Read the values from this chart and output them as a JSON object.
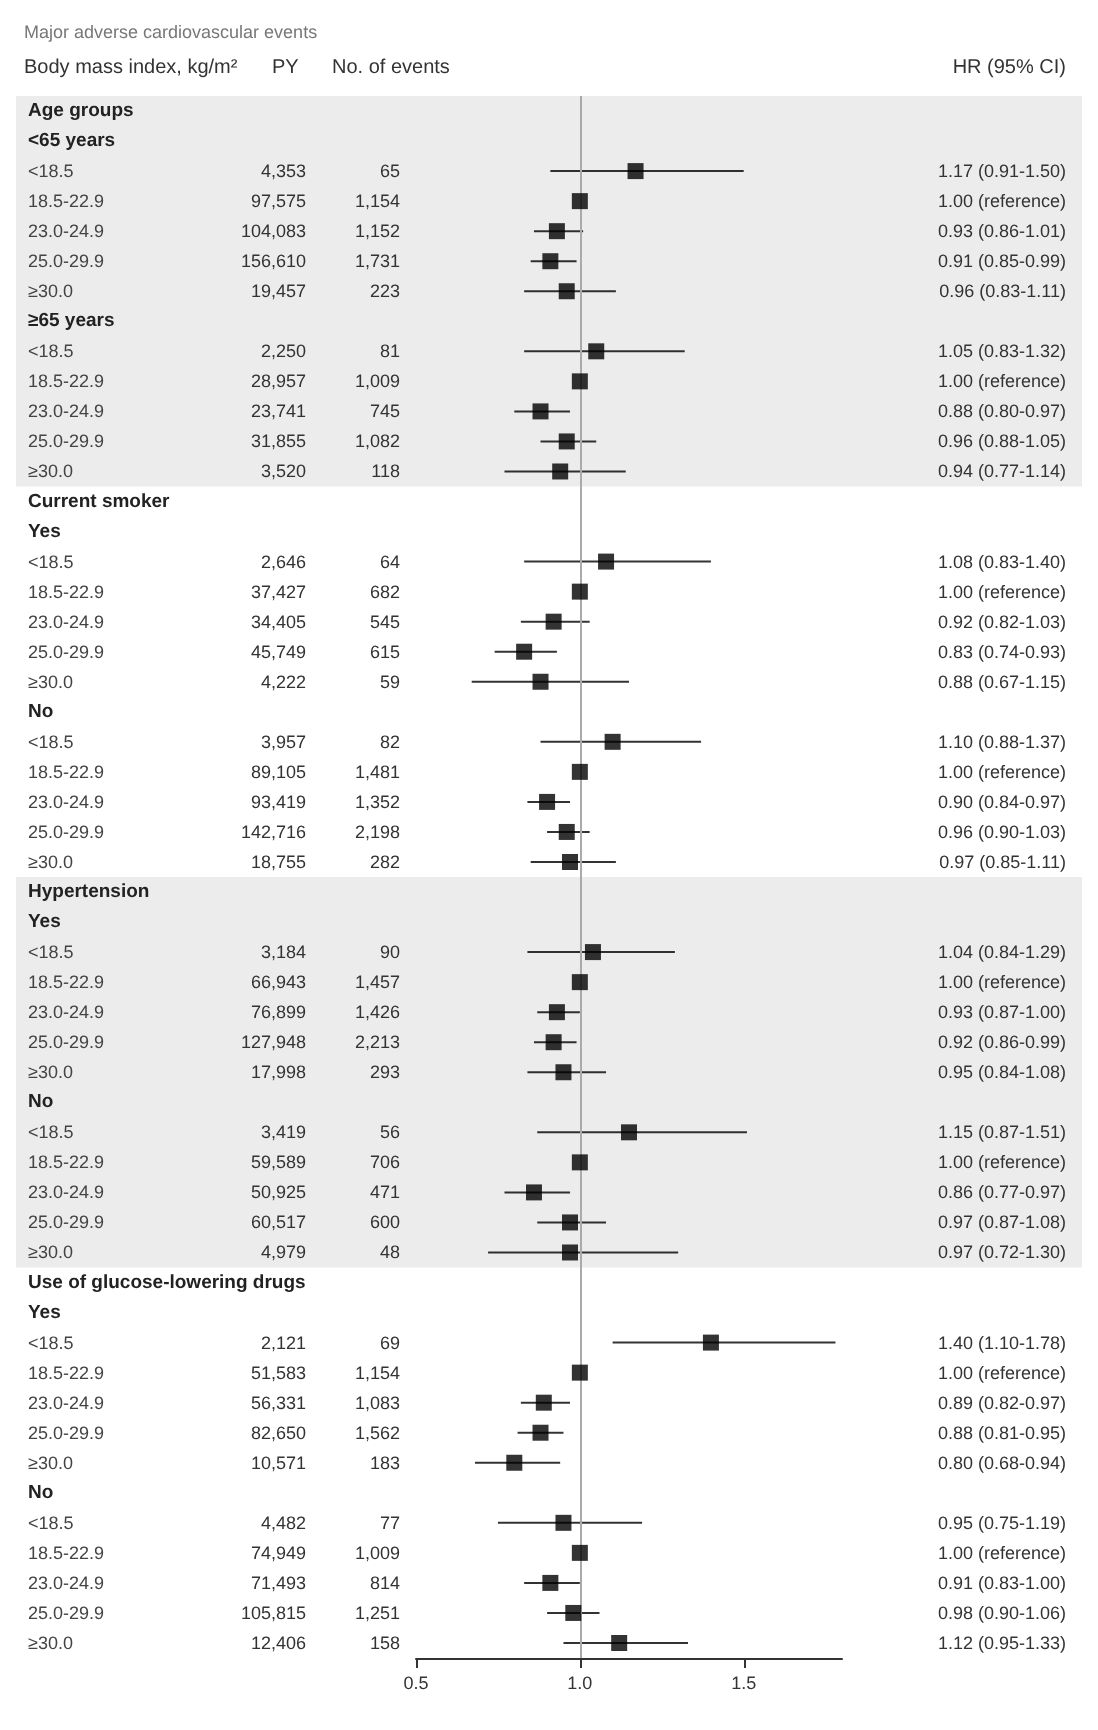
{
  "chart_data": {
    "type": "scatter",
    "orientation": "horizontal",
    "title": "Major adverse cardiovascular events",
    "categories": [
      "Age groups",
      "<65 years",
      "<18.5",
      "18.5-22.9",
      "23.0-24.9",
      "25.0-29.9",
      "≥30.0",
      "≥65 years",
      "<18.5",
      "18.5-22.9",
      "23.0-24.9",
      "25.0-29.9",
      "≥30.0",
      "Current smoker",
      "Yes",
      "<18.5",
      "18.5-22.9",
      "23.0-24.9",
      "25.0-29.9",
      "≥30.0",
      "No",
      "<18.5",
      "18.5-22.9",
      "23.0-24.9",
      "25.0-29.9",
      "≥30.0",
      "Hypertension",
      "Yes",
      "<18.5",
      "18.5-22.9",
      "23.0-24.9",
      "25.0-29.9",
      "≥30.0",
      "No",
      "<18.5",
      "18.5-22.9",
      "23.0-24.9",
      "25.0-29.9",
      "≥30.0",
      "Use of glucose-lowering drugs",
      "Yes",
      "<18.5",
      "18.5-22.9",
      "23.0-24.9",
      "25.0-29.9",
      "≥30.0",
      "No",
      "<18.5",
      "18.5-22.9",
      "23.0-24.9",
      "25.0-29.9",
      "≥30.0"
    ],
    "series": [
      {
        "color": "#000000",
        "values": [
          null,
          null,
          1.17,
          1.0,
          0.93,
          0.91,
          0.96,
          null,
          1.05,
          1.0,
          0.88,
          0.96,
          0.94,
          null,
          null,
          1.08,
          1.0,
          0.92,
          0.83,
          0.88,
          null,
          1.1,
          1.0,
          0.9,
          0.96,
          0.97,
          null,
          null,
          1.04,
          1.0,
          0.93,
          0.92,
          0.95,
          null,
          1.15,
          1.0,
          0.86,
          0.97,
          0.97,
          null,
          null,
          1.4,
          1.0,
          0.89,
          0.88,
          0.8,
          null,
          0.95,
          1.0,
          0.91,
          0.98,
          1.12
        ],
        "errors": [
          null,
          null,
          [
            0.91,
            1.5
          ],
          null,
          [
            0.86,
            1.01
          ],
          [
            0.85,
            0.99
          ],
          [
            0.83,
            1.11
          ],
          null,
          [
            0.83,
            1.32
          ],
          null,
          [
            0.8,
            0.97
          ],
          [
            0.88,
            1.05
          ],
          [
            0.77,
            1.14
          ],
          null,
          null,
          [
            0.83,
            1.4
          ],
          null,
          [
            0.82,
            1.03
          ],
          [
            0.74,
            0.93
          ],
          [
            0.67,
            1.15
          ],
          null,
          [
            0.88,
            1.37
          ],
          null,
          [
            0.84,
            0.97
          ],
          [
            0.9,
            1.03
          ],
          [
            0.85,
            1.11
          ],
          null,
          null,
          [
            0.84,
            1.29
          ],
          null,
          [
            0.87,
            1.0
          ],
          [
            0.86,
            0.99
          ],
          [
            0.84,
            1.08
          ],
          null,
          [
            0.87,
            1.51
          ],
          null,
          [
            0.77,
            0.97
          ],
          [
            0.87,
            1.08
          ],
          [
            0.72,
            1.3
          ],
          null,
          null,
          [
            1.1,
            1.78
          ],
          null,
          [
            0.82,
            0.97
          ],
          [
            0.81,
            0.95
          ],
          [
            0.68,
            0.94
          ],
          null,
          [
            0.75,
            1.19
          ],
          null,
          [
            0.83,
            1.0
          ],
          [
            0.9,
            1.06
          ],
          [
            0.95,
            1.33
          ]
        ],
        "value_labels": [
          null,
          null,
          "1.17 (0.91-1.50)",
          "1.00 (reference)",
          "0.93 (0.86-1.01)",
          "0.91 (0.85-0.99)",
          "0.96 (0.83-1.11)",
          null,
          "1.05 (0.83-1.32)",
          "1.00 (reference)",
          "0.88 (0.80-0.97)",
          "0.96 (0.88-1.05)",
          "0.94 (0.77-1.14)",
          null,
          null,
          "1.08 (0.83-1.40)",
          "1.00 (reference)",
          "0.92 (0.82-1.03)",
          "0.83 (0.74-0.93)",
          "0.88 (0.67-1.15)",
          null,
          "1.10 (0.88-1.37)",
          "1.00 (reference)",
          "0.90 (0.84-0.97)",
          "0.96 (0.90-1.03)",
          "0.97 (0.85-1.11)",
          null,
          null,
          "1.04 (0.84-1.29)",
          "1.00 (reference)",
          "0.93 (0.87-1.00)",
          "0.92 (0.86-0.99)",
          "0.95 (0.84-1.08)",
          null,
          "1.15 (0.87-1.51)",
          "1.00 (reference)",
          "0.86 (0.77-0.97)",
          "0.97 (0.87-1.08)",
          "0.97 (0.72-1.30)",
          null,
          null,
          "1.40 (1.10-1.78)",
          "1.00 (reference)",
          "0.89 (0.82-0.97)",
          "0.88 (0.81-0.95)",
          "0.80 (0.68-0.94)",
          null,
          "0.95 (0.75-1.19)",
          "1.00 (reference)",
          "0.91 (0.83-1.00)",
          "0.98 (0.90-1.06)",
          "1.12 (0.95-1.33)"
        ]
      }
    ],
    "xlim": [
      0.5,
      1.8
    ],
    "xticks": [
      {
        "value": 0.5,
        "label": "0.5"
      },
      {
        "value": 1.0,
        "label": "1.0"
      },
      {
        "value": 1.5,
        "label": "1.5"
      }
    ],
    "marker": "square",
    "grid": false,
    "ref_lines": [
      {
        "axis": "x",
        "value": 1.0,
        "color": "#aaaaaa"
      }
    ],
    "bands": [
      {
        "axis": "y",
        "from": "Age groups",
        "to": "Current smoker",
        "color": "#ececec"
      },
      {
        "axis": "y",
        "from": "Hypertension",
        "to": "Use of glucose-lowering drugs",
        "color": "#ececec"
      }
    ],
    "annotations": [
      "Body mass index, kg/m²",
      "PY",
      "No. of events",
      "HR (95% CI)",
      "4,353",
      "65",
      "97,575",
      "1,154",
      "104,083",
      "1,152",
      "156,610",
      "1,731",
      "19,457",
      "223",
      "2,250",
      "81",
      "28,957",
      "1,009",
      "23,741",
      "745",
      "31,855",
      "1,082",
      "3,520",
      "118",
      "2,646",
      "64",
      "37,427",
      "682",
      "34,405",
      "545",
      "45,749",
      "615",
      "4,222",
      "59",
      "3,957",
      "82",
      "89,105",
      "1,481",
      "93,419",
      "1,352",
      "142,716",
      "2,198",
      "18,755",
      "282",
      "3,184",
      "90",
      "66,943",
      "1,457",
      "76,899",
      "1,426",
      "127,948",
      "2,213",
      "17,998",
      "293",
      "3,419",
      "56",
      "59,589",
      "706",
      "50,925",
      "471",
      "60,517",
      "600",
      "4,979",
      "48",
      "2,121",
      "69",
      "51,583",
      "1,154",
      "56,331",
      "1,083",
      "82,650",
      "1,562",
      "10,571",
      "183",
      "4,482",
      "77",
      "74,949",
      "1,009",
      "71,493",
      "814",
      "105,815",
      "1,251",
      "12,406",
      "158"
    ]
  }
}
